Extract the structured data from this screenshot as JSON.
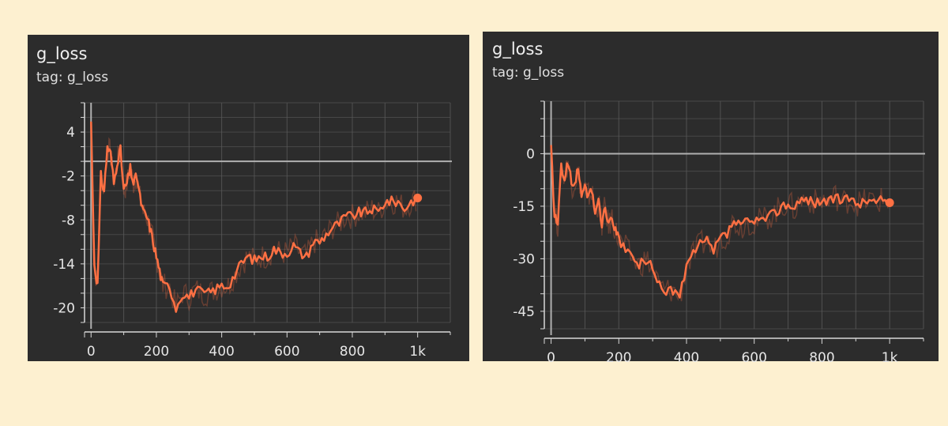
{
  "colors": {
    "background": "#fdf0d0",
    "panel": "#2c2c2c",
    "grid": "#5a5a5a",
    "axis": "#d8d8d8",
    "zero_line": "#b0b0b0",
    "series": "#ff7043",
    "raw_series": "#ff7043"
  },
  "panels": [
    {
      "title": "g_loss",
      "tag": "tag: g_loss",
      "x_ticks": [
        "0",
        "200",
        "400",
        "600",
        "800",
        "1k"
      ],
      "y_ticks": [
        "4",
        "-2",
        "-8",
        "-14",
        "-20"
      ]
    },
    {
      "title": "g_loss",
      "tag": "tag: g_loss",
      "x_ticks": [
        "0",
        "200",
        "400",
        "600",
        "800",
        "1k"
      ],
      "y_ticks": [
        "0",
        "-15",
        "-30",
        "-45"
      ]
    }
  ],
  "chart_data": [
    {
      "type": "line",
      "title": "g_loss",
      "xlabel": "",
      "ylabel": "",
      "xlim": [
        -20,
        1100
      ],
      "ylim": [
        -22,
        8
      ],
      "x_tick_values": [
        0,
        200,
        400,
        600,
        800,
        1000
      ],
      "y_tick_values": [
        4,
        -2,
        -8,
        -14,
        -20
      ],
      "grid": true,
      "series": [
        {
          "x": [
            0,
            10,
            20,
            30,
            40,
            50,
            60,
            70,
            80,
            90,
            100,
            110,
            120,
            130,
            140,
            150,
            160,
            170,
            180,
            190,
            200,
            210,
            220,
            240,
            260,
            280,
            300,
            320,
            340,
            360,
            380,
            400,
            420,
            440,
            460,
            480,
            500,
            520,
            540,
            560,
            580,
            600,
            620,
            640,
            660,
            680,
            700,
            720,
            740,
            760,
            780,
            800,
            820,
            840,
            860,
            880,
            900,
            920,
            940,
            960,
            980,
            1000
          ],
          "y": [
            5.5,
            -14,
            -17,
            -2,
            -4,
            2,
            1,
            -3,
            0,
            1.5,
            -4,
            -3,
            -1,
            -3,
            -2,
            -5,
            -7,
            -7.5,
            -9,
            -11,
            -13,
            -15,
            -17,
            -17,
            -20,
            -18,
            -18.5,
            -17.5,
            -18,
            -18,
            -17.5,
            -17,
            -17,
            -15.5,
            -14,
            -13,
            -13.5,
            -13,
            -13,
            -12,
            -12.5,
            -12.5,
            -11.5,
            -12.5,
            -13,
            -11,
            -11,
            -10,
            -9,
            -8.5,
            -7.5,
            -7.5,
            -7,
            -7,
            -6.5,
            -7,
            -5.5,
            -5.5,
            -5.5,
            -6.5,
            -5.5,
            -5
          ]
        }
      ]
    },
    {
      "type": "line",
      "title": "g_loss",
      "xlabel": "",
      "ylabel": "",
      "xlim": [
        -20,
        1100
      ],
      "ylim": [
        -50,
        15
      ],
      "x_tick_values": [
        0,
        200,
        400,
        600,
        800,
        1000
      ],
      "y_tick_values": [
        0,
        -15,
        -30,
        -45
      ],
      "grid": true,
      "series": [
        {
          "x": [
            0,
            10,
            20,
            30,
            40,
            50,
            60,
            70,
            80,
            90,
            100,
            110,
            120,
            130,
            140,
            150,
            160,
            170,
            180,
            190,
            200,
            220,
            240,
            260,
            280,
            300,
            320,
            340,
            360,
            380,
            400,
            420,
            440,
            460,
            480,
            500,
            520,
            540,
            560,
            580,
            600,
            620,
            640,
            660,
            680,
            700,
            720,
            740,
            760,
            780,
            800,
            820,
            840,
            860,
            880,
            900,
            920,
            940,
            960,
            980,
            1000
          ],
          "y": [
            2,
            -18,
            -20,
            -4,
            -7,
            -2,
            -9,
            -8,
            -5,
            -11,
            -10,
            -12,
            -11,
            -16,
            -14,
            -20,
            -15,
            -21,
            -18,
            -22,
            -25,
            -27,
            -30,
            -32,
            -30,
            -33,
            -38,
            -39,
            -39,
            -41,
            -32,
            -29,
            -26,
            -25,
            -28,
            -24,
            -23,
            -19,
            -21,
            -19,
            -20,
            -19,
            -18,
            -17,
            -15,
            -14,
            -16,
            -13,
            -13,
            -14,
            -13,
            -14,
            -12,
            -14,
            -13,
            -14,
            -14,
            -13,
            -14,
            -13,
            -14
          ]
        }
      ]
    }
  ]
}
